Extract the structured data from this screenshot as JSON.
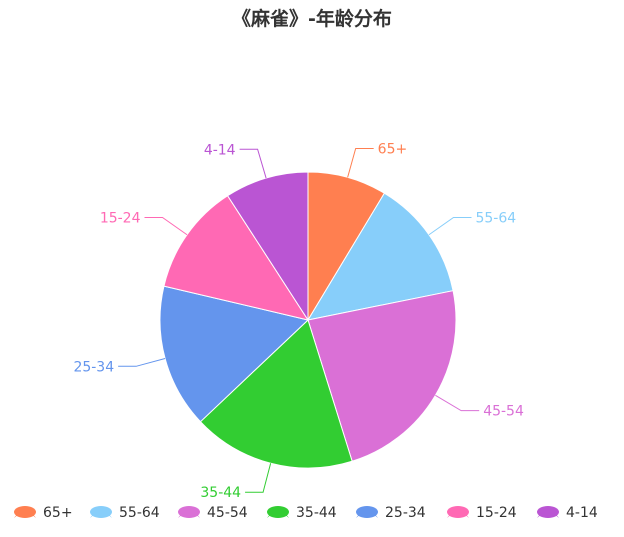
{
  "chart_data": {
    "type": "pie",
    "title": "《麻雀》-年龄分布",
    "slices": [
      {
        "name": "65+",
        "value": 8.5,
        "color": "#ff7f50"
      },
      {
        "name": "55-64",
        "value": 13,
        "color": "#87cefa"
      },
      {
        "name": "45-54",
        "value": 23,
        "color": "#da70d6"
      },
      {
        "name": "35-44",
        "value": 17.5,
        "color": "#32cd32"
      },
      {
        "name": "25-34",
        "value": 15.5,
        "color": "#6495ed"
      },
      {
        "name": "15-24",
        "value": 12,
        "color": "#ff69b4"
      },
      {
        "name": "4-14",
        "value": 9,
        "color": "#ba55d3"
      }
    ],
    "start": "top",
    "direction": "clockwise",
    "legend_position": "bottom",
    "legend": [
      "65+",
      "55-64",
      "45-54",
      "35-44",
      "25-34",
      "15-24",
      "4-14"
    ]
  }
}
